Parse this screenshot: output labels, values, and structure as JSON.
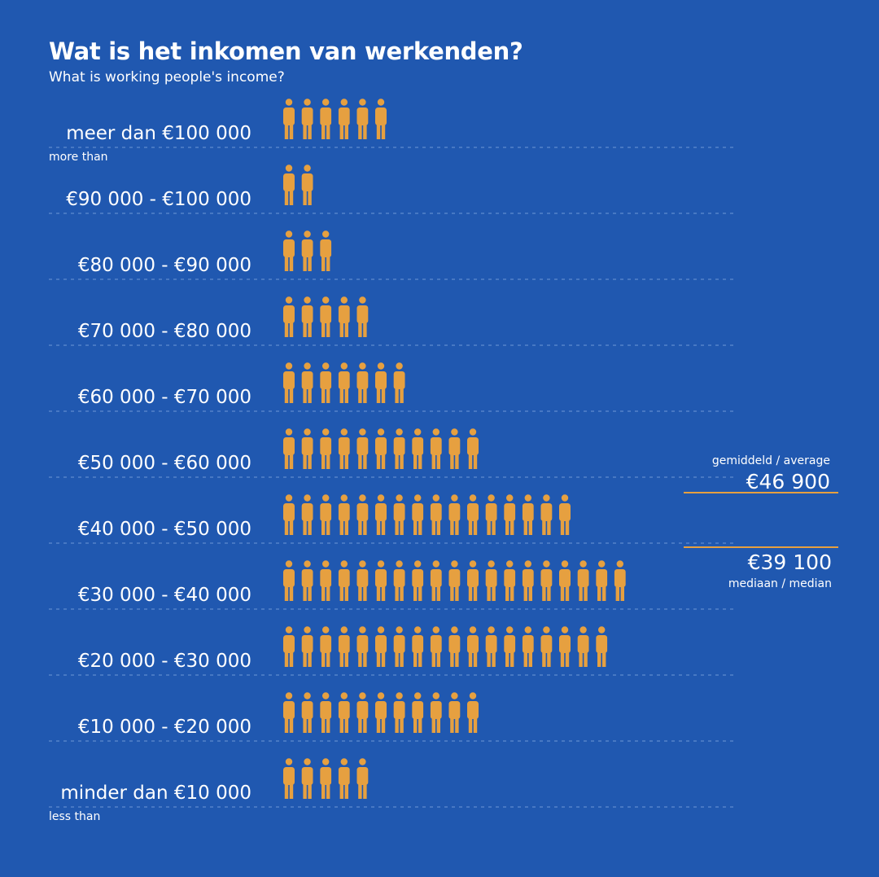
{
  "title": "Wat is het inkomen van werkenden?",
  "subtitle": "What is working people's income?",
  "colors": {
    "background": "#2058b0",
    "person": "#e6a040",
    "text": "#ffffff",
    "guide": "#6e98d6"
  },
  "icon": "person-icon",
  "chart_data": {
    "type": "bar",
    "orientation": "horizontal",
    "unit_note": "each person icon counts as one unit",
    "categories": [
      "meer dan €100 000",
      "€90 000 - €100 000",
      "€80 000 - €90 000",
      "€70 000 - €80 000",
      "€60 000 - €70 000",
      "€50 000 - €60 000",
      "€40 000 - €50 000",
      "€30 000 - €40 000",
      "€20 000 - €30 000",
      "€10 000 - €20 000",
      "minder dan €10 000"
    ],
    "sublabels": [
      "more than",
      "",
      "",
      "",
      "",
      "",
      "",
      "",
      "",
      "",
      "less than"
    ],
    "values": [
      6,
      2,
      3,
      5,
      7,
      11,
      16,
      19,
      18,
      11,
      5
    ],
    "average": {
      "caption": "gemiddeld / average",
      "value": "€46 900"
    },
    "median": {
      "caption": "mediaan / median",
      "value": "€39 100"
    }
  }
}
